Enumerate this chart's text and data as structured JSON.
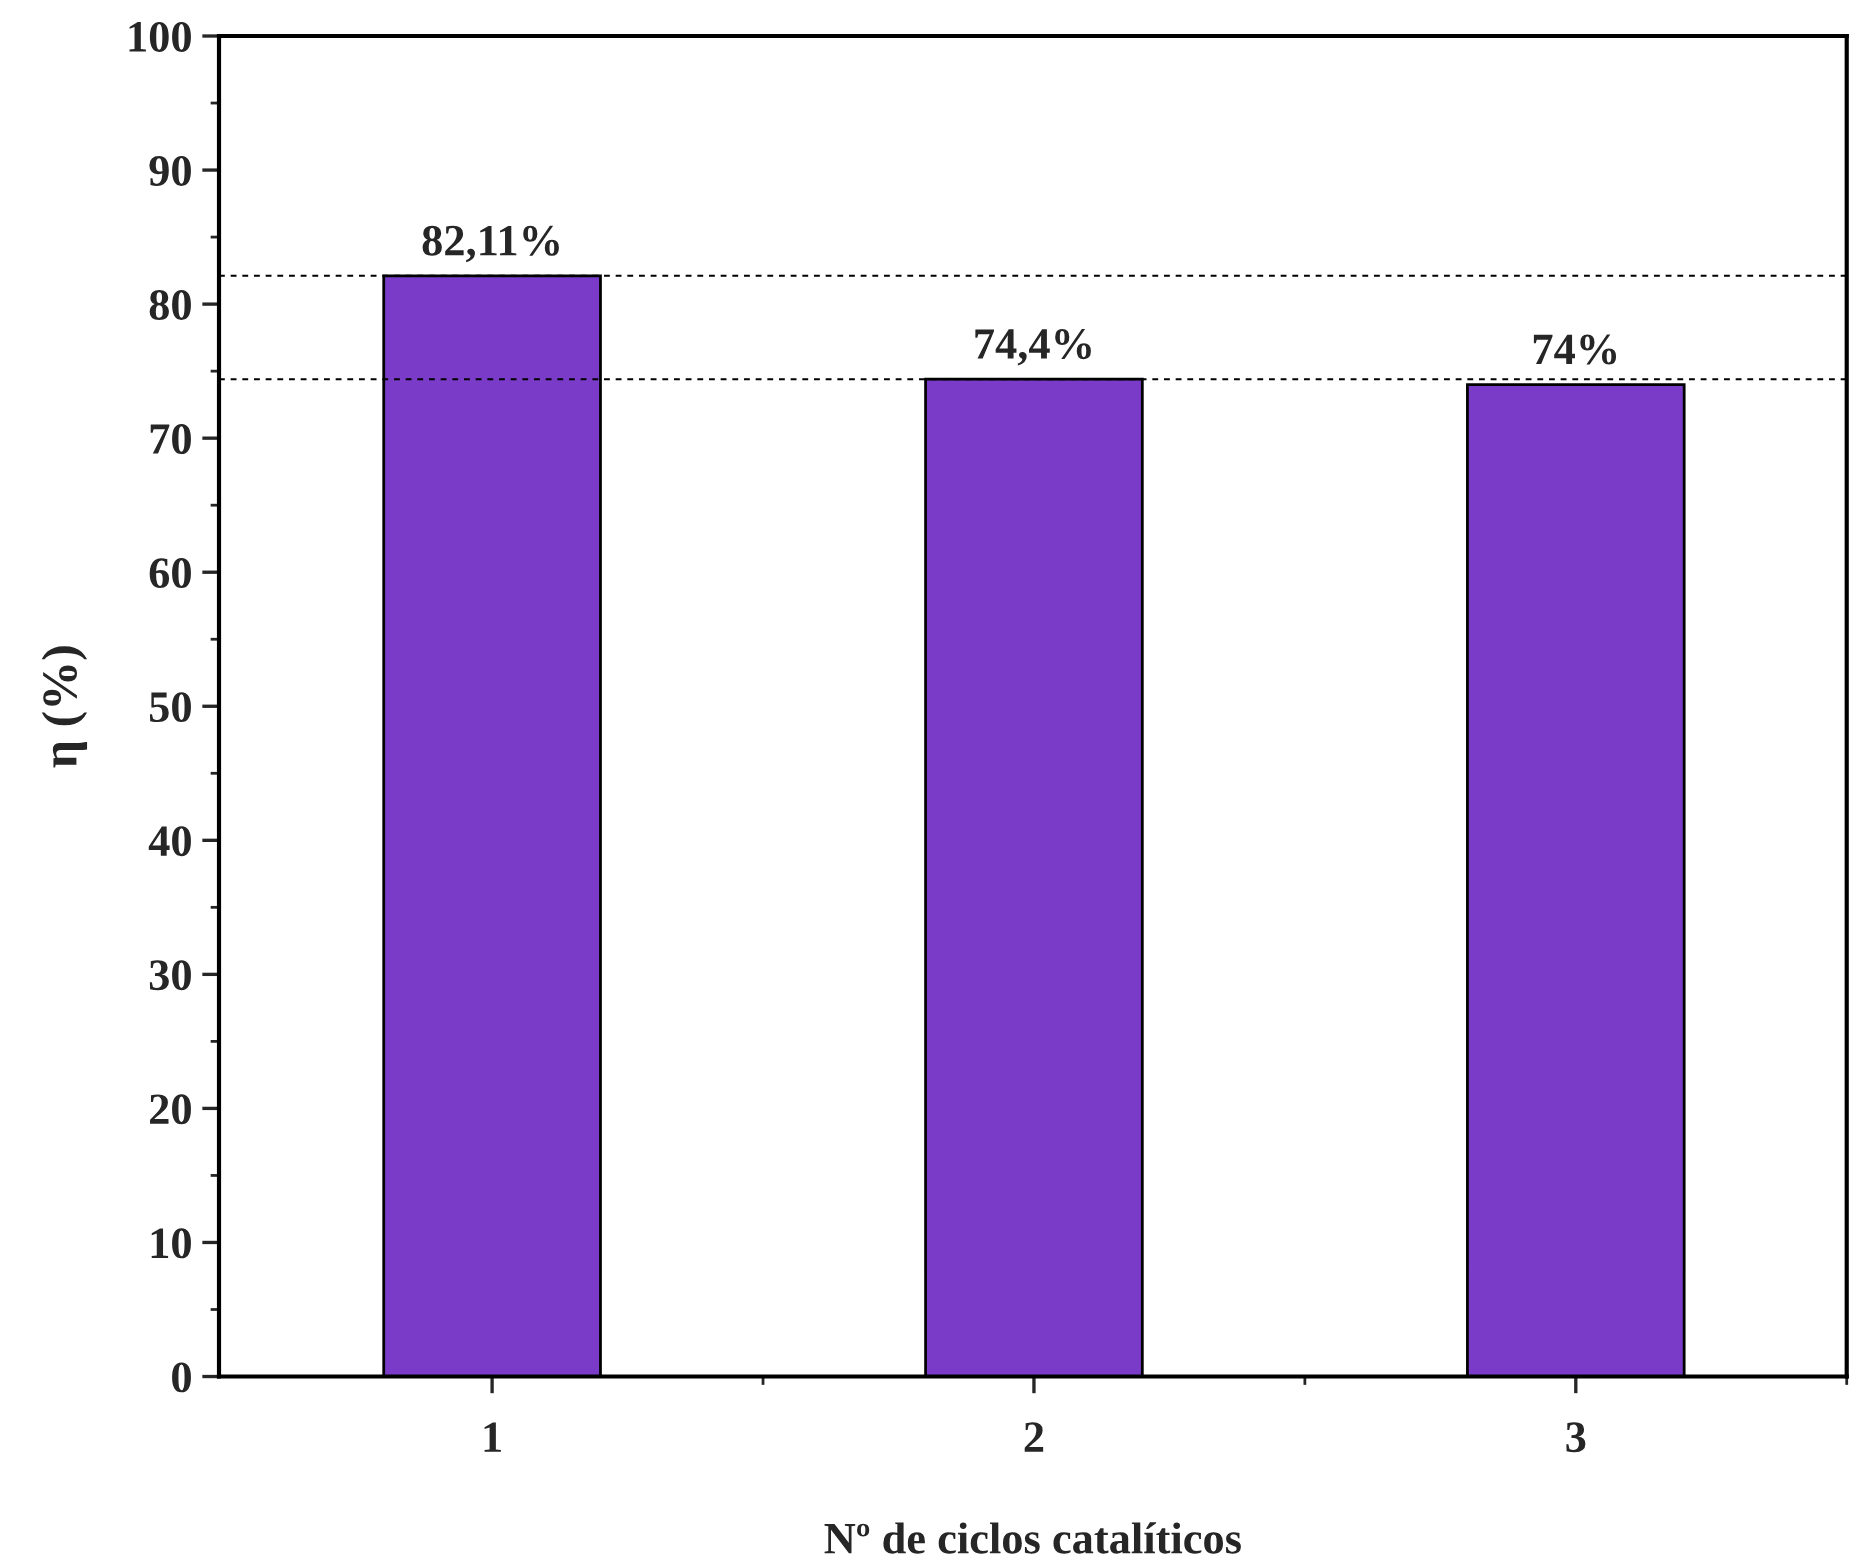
{
  "chart_data": {
    "type": "bar",
    "xlabel": "Nº de ciclos catalíticos",
    "ylabel": "η (%)",
    "categories": [
      "1",
      "2",
      "3"
    ],
    "values": [
      82.11,
      74.4,
      74
    ],
    "value_labels": [
      "82,11%",
      "74,4%",
      "74%"
    ],
    "color": "#7a3cc8",
    "ylim": [
      0,
      100
    ],
    "yticks": [
      0,
      10,
      20,
      30,
      40,
      50,
      60,
      70,
      80,
      90,
      100
    ],
    "ref_lines": [
      {
        "axis": "y",
        "value": 82.11,
        "color": "#000000",
        "line_style": "dashed"
      },
      {
        "axis": "y",
        "value": 74.4,
        "color": "#000000",
        "line_style": "dashed"
      }
    ],
    "grid": false,
    "legend": false
  }
}
